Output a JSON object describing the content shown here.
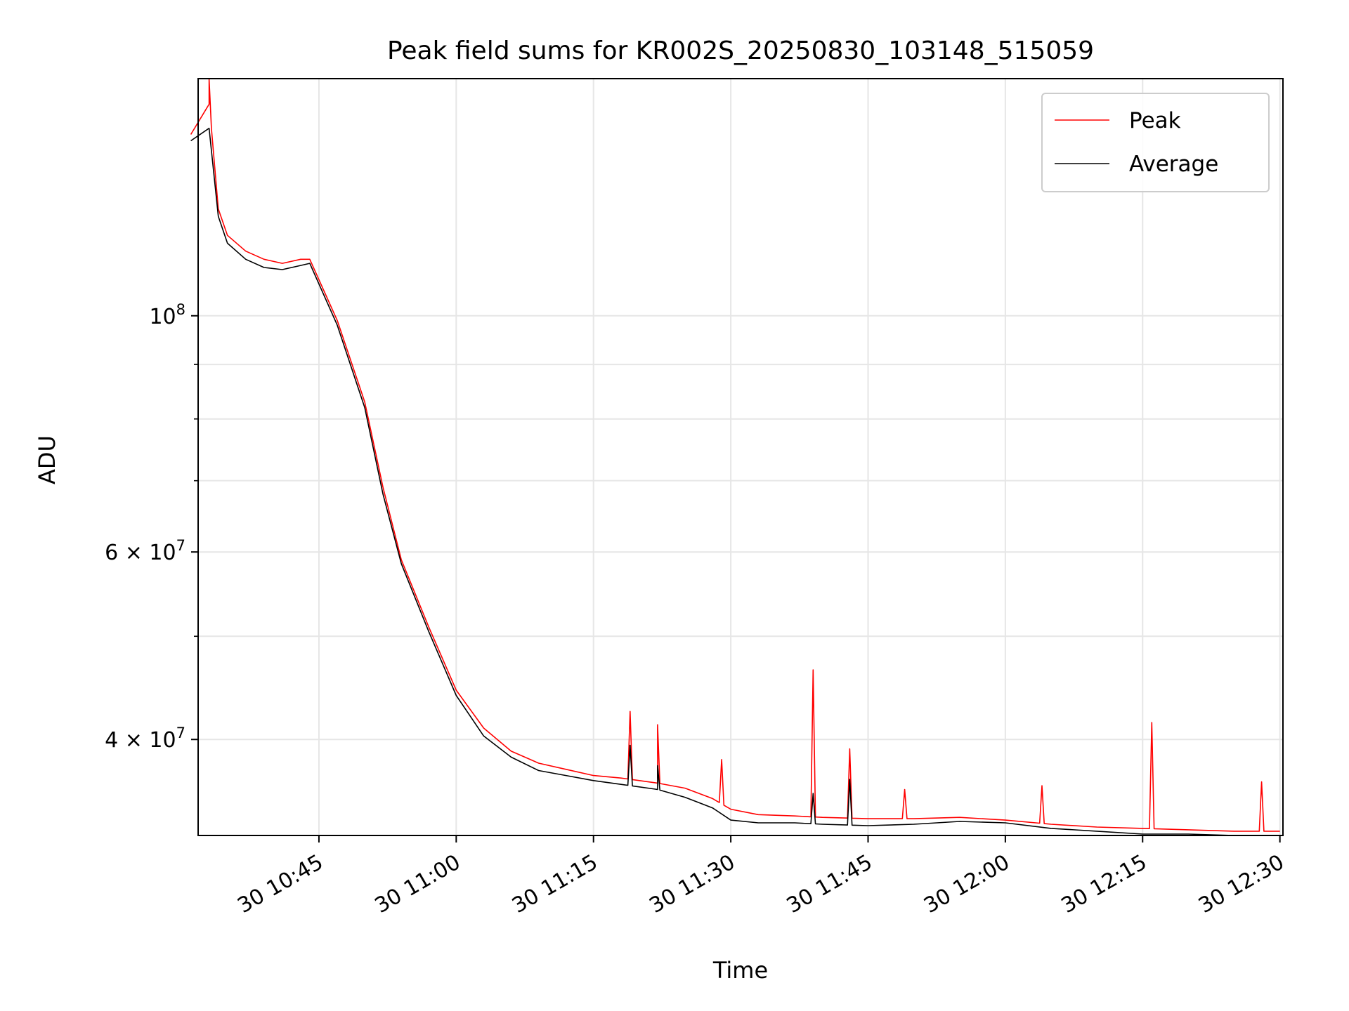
{
  "chart_data": {
    "type": "line",
    "title": "Peak field sums for KR002S_20250830_103148_515059",
    "xlabel": "Time",
    "ylabel": "ADU",
    "y_scale": "log",
    "ylim": [
      32500000,
      167000000
    ],
    "xlim": [
      "2025-08-30 10:31:48",
      "2025-08-30 12:30:20"
    ],
    "grid": true,
    "legend_position": "top-right",
    "x_ticks": [
      "30 10:45",
      "30 11:00",
      "30 11:15",
      "30 11:30",
      "30 11:45",
      "30 12:00",
      "30 12:15",
      "30 12:30"
    ],
    "y_ticks": [
      {
        "value": 100000000,
        "base": "10",
        "exp": "8",
        "prefix": ""
      },
      {
        "value": 60000000,
        "base": "10",
        "exp": "7",
        "prefix": "6 × "
      },
      {
        "value": 40000000,
        "base": "10",
        "exp": "7",
        "prefix": "4 × "
      }
    ],
    "y_minor_ticks": [
      50000000,
      70000000,
      80000000,
      90000000
    ],
    "series": [
      {
        "name": "Peak",
        "color": "#ff0000",
        "x": [
          "30 10:31",
          "30 10:33",
          "30 10:34",
          "30 10:35",
          "30 10:37",
          "30 10:39",
          "30 10:41",
          "30 10:43",
          "30 10:44",
          "30 10:47",
          "30 10:50",
          "30 10:52",
          "30 10:54",
          "30 10:57",
          "30 11:00",
          "30 11:03",
          "30 11:06",
          "30 11:09",
          "30 11:12",
          "30 11:15",
          "30 11:18",
          "30 11:22",
          "30 11:25",
          "30 11:28",
          "30 11:30",
          "30 11:33",
          "30 11:37",
          "30 11:40",
          "30 11:45",
          "30 11:50",
          "30 11:55",
          "30 12:00",
          "30 12:05",
          "30 12:10",
          "30 12:15",
          "30 12:20",
          "30 12:25",
          "30 12:30"
        ],
        "values": [
          148000000,
          158000000,
          126000000,
          119000000,
          115000000,
          113000000,
          112000000,
          113000000,
          113000000,
          99000000,
          83000000,
          69000000,
          59000000,
          51000000,
          44500000,
          41000000,
          39000000,
          38000000,
          37500000,
          37000000,
          36800000,
          36400000,
          36000000,
          35200000,
          34400000,
          34000000,
          33900000,
          33800000,
          33700000,
          33700000,
          33800000,
          33600000,
          33300000,
          33100000,
          33000000,
          32900000,
          32800000,
          32800000
        ],
        "spikes": [
          {
            "x": "30 10:33",
            "value": 167000000
          },
          {
            "x": "30 11:19",
            "value": 42500000
          },
          {
            "x": "30 11:22",
            "value": 41300000
          },
          {
            "x": "30 11:29",
            "value": 38300000
          },
          {
            "x": "30 11:39",
            "value": 46500000
          },
          {
            "x": "30 11:43",
            "value": 39200000
          },
          {
            "x": "30 11:49",
            "value": 35900000
          },
          {
            "x": "30 12:04",
            "value": 36200000
          },
          {
            "x": "30 12:16",
            "value": 41500000
          },
          {
            "x": "30 12:28",
            "value": 36500000
          }
        ]
      },
      {
        "name": "Average",
        "color": "#000000",
        "x": [
          "30 10:31",
          "30 10:33",
          "30 10:34",
          "30 10:35",
          "30 10:37",
          "30 10:39",
          "30 10:41",
          "30 10:43",
          "30 10:44",
          "30 10:47",
          "30 10:50",
          "30 10:52",
          "30 10:54",
          "30 10:57",
          "30 11:00",
          "30 11:03",
          "30 11:06",
          "30 11:09",
          "30 11:12",
          "30 11:15",
          "30 11:18",
          "30 11:22",
          "30 11:25",
          "30 11:28",
          "30 11:30",
          "30 11:33",
          "30 11:37",
          "30 11:40",
          "30 11:45",
          "30 11:50",
          "30 11:55",
          "30 12:00",
          "30 12:05",
          "30 12:10",
          "30 12:15",
          "30 12:20",
          "30 12:25",
          "30 12:30"
        ],
        "values": [
          146000000,
          150000000,
          124000000,
          117000000,
          113000000,
          111000000,
          110500000,
          111500000,
          112000000,
          98000000,
          82000000,
          68000000,
          58500000,
          50500000,
          44000000,
          40300000,
          38500000,
          37400000,
          37000000,
          36600000,
          36300000,
          35900000,
          35300000,
          34500000,
          33600000,
          33400000,
          33400000,
          33300000,
          33200000,
          33300000,
          33500000,
          33400000,
          33000000,
          32800000,
          32600000,
          32600000,
          32500000,
          32500000
        ],
        "spikes": [
          {
            "x": "30 11:19",
            "value": 39500000
          },
          {
            "x": "30 11:22",
            "value": 37800000
          },
          {
            "x": "30 11:39",
            "value": 35600000
          },
          {
            "x": "30 11:43",
            "value": 36700000
          }
        ]
      }
    ]
  }
}
